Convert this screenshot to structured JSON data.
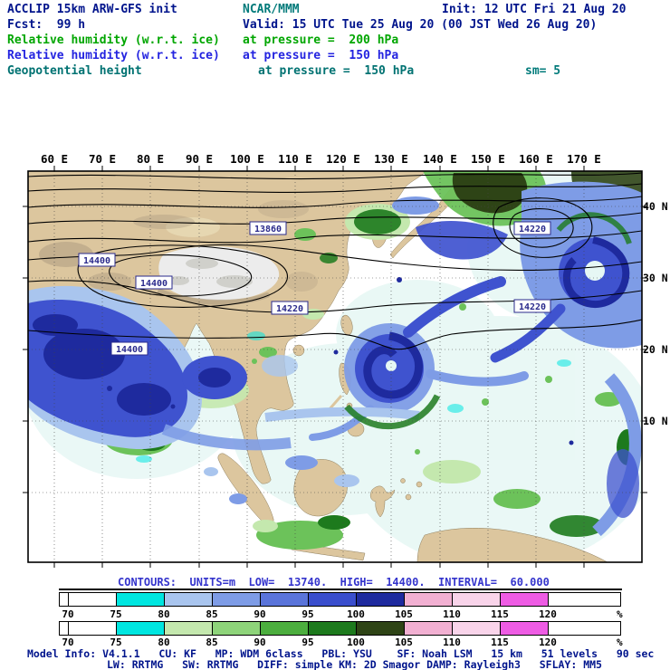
{
  "header": {
    "title": "ACCLIP 15km ARW-GFS init",
    "org": "NCAR/MMM",
    "init": "Init: 12 UTC Fri 21 Aug 20",
    "fcst": "Fcst:  99 h",
    "valid": "Valid: 15 UTC Tue 25 Aug 20 (00 JST Wed 26 Aug 20)",
    "fields": [
      {
        "name": "Relative humidity (w.r.t. ice)",
        "level": "at pressure =  200 hPa",
        "color": "#00a600"
      },
      {
        "name": "Relative humidity (w.r.t. ice)",
        "level": "at pressure =  150 hPa",
        "color": "#2424e0"
      },
      {
        "name": "Geopotential height",
        "level": "at pressure =  150 hPa",
        "color": "#007272"
      }
    ],
    "smooth": "sm= 5"
  },
  "map": {
    "x_ticks": [
      "60 E",
      "70 E",
      "80 E",
      "90 E",
      "100 E",
      "110 E",
      "120 E",
      "130 E",
      "140 E",
      "150 E",
      "160 E",
      "170 E"
    ],
    "y_ticks": [
      "40 N",
      "30 N",
      "20 N",
      "10 N"
    ],
    "contour_labels": [
      "13860",
      "14400",
      "14400",
      "14220",
      "14220",
      "14220",
      "14400"
    ]
  },
  "legend": {
    "contours_info": "CONTOURS:  UNITS=m  LOW=  13740.  HIGH=  14400.  INTERVAL=  60.000",
    "unit": "%",
    "ticks": [
      "70",
      "75",
      "80",
      "85",
      "90",
      "95",
      "100",
      "105",
      "110",
      "115",
      "120"
    ],
    "colorbars": [
      {
        "name": "rh-150hPa-blue",
        "colors": [
          "#ffffff",
          "#ffffff",
          "#00e6e0",
          "#a9c5ee",
          "#7e9ce6",
          "#5a74da",
          "#3a4ecd",
          "#1e2a9e",
          "#f2b0d2",
          "#f9d4ea",
          "#ee5ce4",
          "#ffffff"
        ]
      },
      {
        "name": "rh-200hPa-green",
        "colors": [
          "#ffffff",
          "#ffffff",
          "#00e6e0",
          "#c4e8ae",
          "#8ed47a",
          "#4cae3e",
          "#1d7a1d",
          "#2e4416",
          "#f2b0d2",
          "#f9d4ea",
          "#ee5ce4",
          "#ffffff"
        ]
      }
    ]
  },
  "footer": {
    "line1": "Model Info: V4.1.1   CU: KF   MP: WDM 6class   PBL: YSU    SF: Noah LSM   15 km   51 levels   90 sec",
    "line2": "LW: RRTMG   SW: RRTMG   DIFF: simple KM: 2D Smagor DAMP: Rayleigh3   SFLAY: MM5"
  },
  "palette": {
    "land": "#dcc69e",
    "land-stroke": "#8d7d5c",
    "plateau": "#ececec",
    "plateau-dark": "#b9b9b1",
    "mtn": "#a4937a",
    "desert": "#e7d8b2",
    "rh-pale": "#e6f7f4",
    "cyan": "#00e6e0",
    "b1": "#a9c5ee",
    "b2": "#7e9ce6",
    "b3": "#3f53cf",
    "navy": "#1e2a9e",
    "g1": "#c4e8ae",
    "g2": "#6cc25a",
    "g3": "#1d7a1d",
    "olive": "#2e4416",
    "clabel": "#2a2a8c"
  }
}
